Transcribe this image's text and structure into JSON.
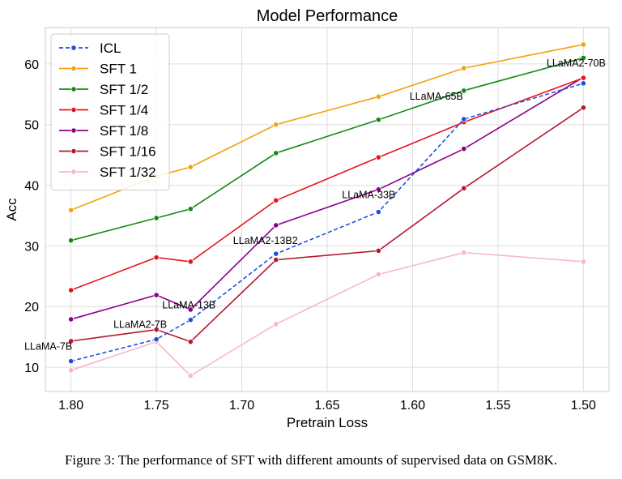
{
  "chart_data": {
    "type": "line",
    "title": "Model Performance",
    "xlabel": "Pretrain Loss",
    "ylabel": "Acc",
    "x": [
      1.8,
      1.75,
      1.73,
      1.68,
      1.62,
      1.57,
      1.5
    ],
    "xlim": [
      1.815,
      1.485
    ],
    "x_inverted": true,
    "ylim": [
      6,
      66
    ],
    "xticks": [
      1.8,
      1.75,
      1.7,
      1.65,
      1.6,
      1.55,
      1.5
    ],
    "xtick_labels": [
      "1.80",
      "1.75",
      "1.70",
      "1.65",
      "1.60",
      "1.55",
      "1.50"
    ],
    "yticks": [
      10,
      20,
      30,
      40,
      50,
      60
    ],
    "ytick_labels": [
      "10",
      "20",
      "30",
      "40",
      "50",
      "60"
    ],
    "grid": true,
    "legend_position": "top-left",
    "series": [
      {
        "name": "ICL",
        "color": "#1f4fe0",
        "dashed": true,
        "values": [
          11.0,
          14.6,
          17.8,
          28.7,
          35.6,
          50.9,
          56.8
        ]
      },
      {
        "name": "SFT 1",
        "color": "#f5a00f",
        "dashed": false,
        "values": [
          35.9,
          41.5,
          43.0,
          50.0,
          54.6,
          59.3,
          63.2
        ]
      },
      {
        "name": "SFT 1/2",
        "color": "#138a13",
        "dashed": false,
        "values": [
          30.9,
          34.6,
          36.1,
          45.3,
          50.8,
          55.6,
          61.0
        ]
      },
      {
        "name": "SFT 1/4",
        "color": "#e8141c",
        "dashed": false,
        "values": [
          22.7,
          28.1,
          27.4,
          37.5,
          44.6,
          50.4,
          57.7
        ]
      },
      {
        "name": "SFT 1/8",
        "color": "#8a008a",
        "dashed": false,
        "values": [
          17.9,
          21.9,
          19.5,
          33.4,
          39.3,
          46.0,
          57.8
        ]
      },
      {
        "name": "SFT 1/16",
        "color": "#b5172e",
        "dashed": false,
        "values": [
          14.3,
          16.2,
          14.2,
          27.7,
          29.2,
          39.5,
          52.8
        ]
      },
      {
        "name": "SFT 1/32",
        "color": "#f7b6c8",
        "dashed": false,
        "values": [
          9.5,
          14.2,
          8.6,
          17.1,
          25.3,
          28.9,
          27.4
        ]
      }
    ],
    "annotations": [
      {
        "text": "LLaMA-7B",
        "x": 1.8,
        "y": 11.0
      },
      {
        "text": "LLaMA2-7B",
        "x": 1.75,
        "y": 14.6
      },
      {
        "text": "LLaMA-13B",
        "x": 1.73,
        "y": 17.8
      },
      {
        "text": "LLaMA2-13B2",
        "x": 1.68,
        "y": 28.7
      },
      {
        "text": "LLaMA-33B",
        "x": 1.62,
        "y": 35.6
      },
      {
        "text": "LLaMA-65B",
        "x": 1.57,
        "y": 50.9
      },
      {
        "text": "LLaMA2-70B",
        "x": 1.5,
        "y": 56.8
      }
    ]
  },
  "caption": "Figure 3: The performance of SFT with different amounts of supervised data on GSM8K."
}
